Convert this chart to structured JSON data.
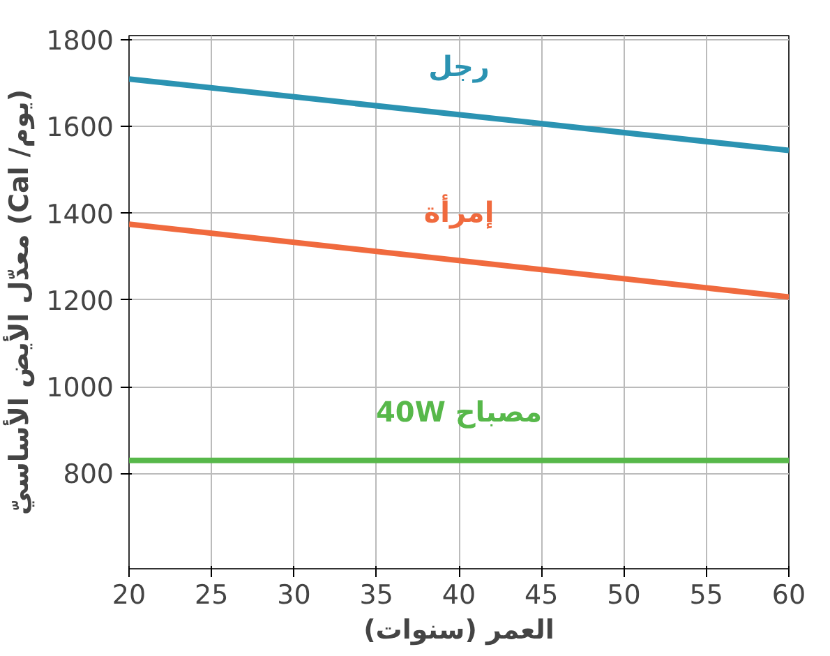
{
  "chart_data": {
    "type": "line",
    "xlabel": "العمر (سنوات)",
    "ylabel": "معدّل الأيض الأساسيّ (Cal /يوم)",
    "x": [
      20,
      60
    ],
    "xlim": [
      20,
      60
    ],
    "ylim": [
      580,
      1810
    ],
    "xticks": [
      20,
      25,
      30,
      35,
      40,
      45,
      50,
      55,
      60
    ],
    "yticks": [
      800,
      1000,
      1200,
      1400,
      1600,
      1800
    ],
    "grid": true,
    "marker": "none",
    "line_style": "solid",
    "series": [
      {
        "name": "رجل",
        "color": "#2b93b2",
        "values": [
          1710,
          1545
        ]
      },
      {
        "name": "إمرأة",
        "color": "#f06a3e",
        "values": [
          1375,
          1207
        ]
      },
      {
        "name": "مصباح 40W",
        "color": "#57b84a",
        "values": [
          830,
          830
        ]
      }
    ]
  }
}
